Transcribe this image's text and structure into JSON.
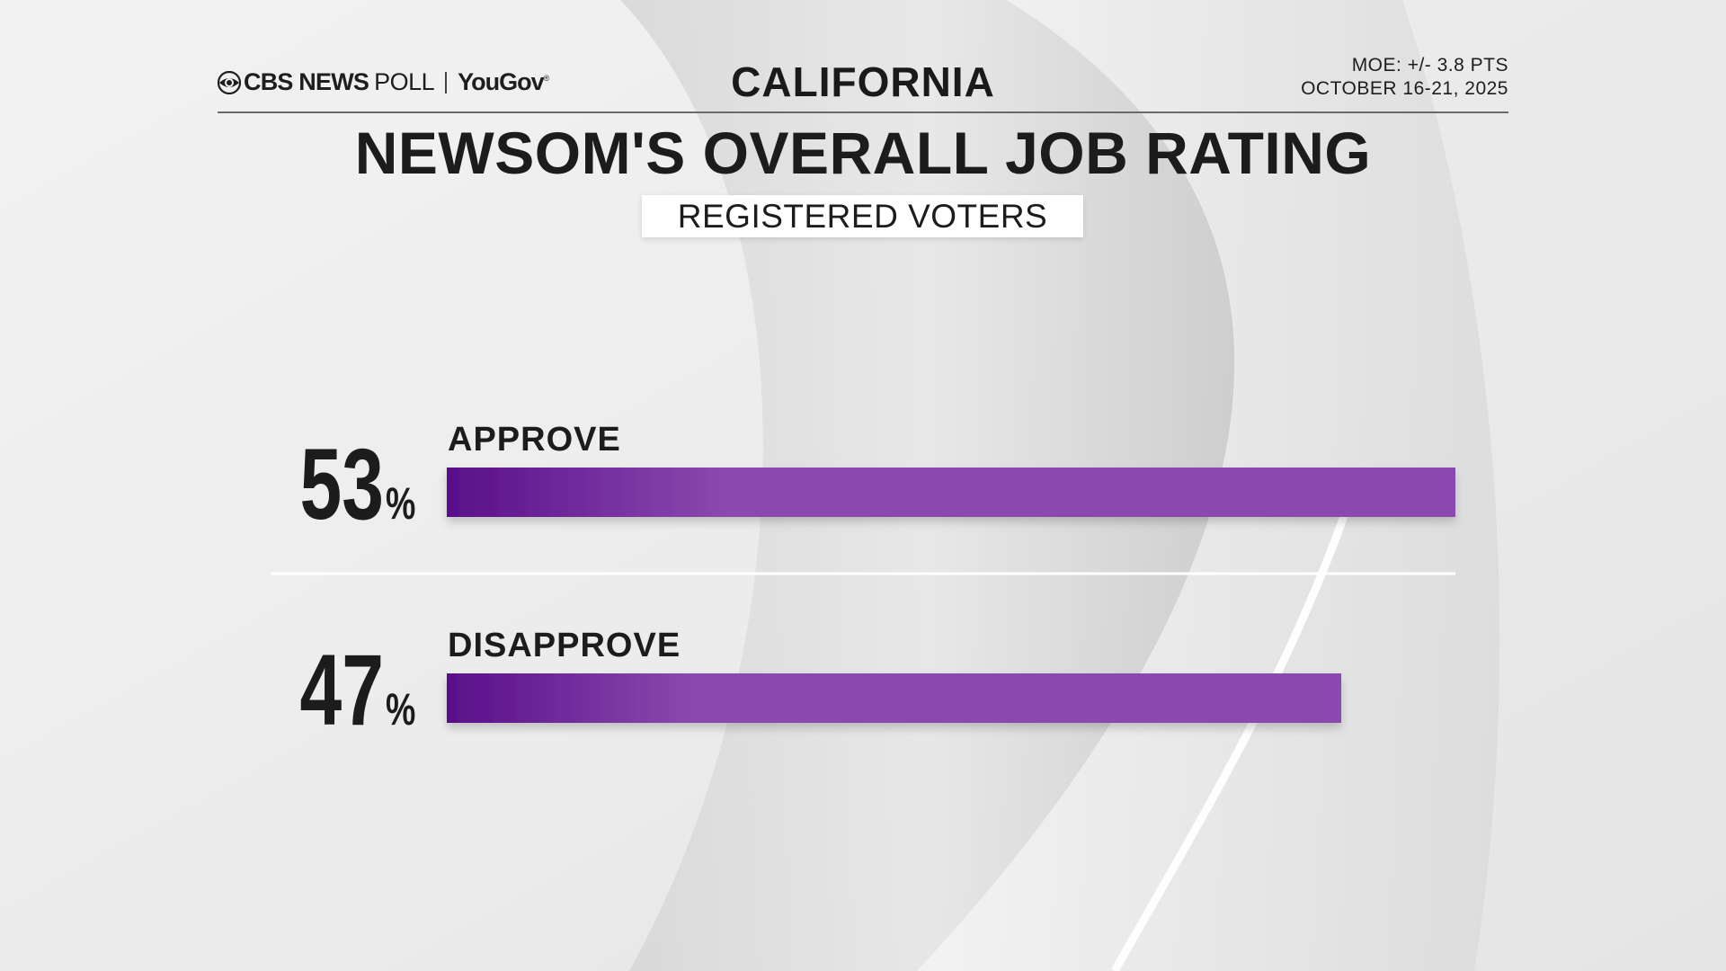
{
  "header": {
    "brand_cbs": "CBS NEWS",
    "brand_poll": "POLL",
    "brand_partner": "YouGov",
    "region": "CALIFORNIA",
    "moe": "MOE: +/- 3.8 PTS",
    "dates": "OCTOBER 16-21, 2025"
  },
  "subtitle_badge": "REGISTERED VOTERS",
  "colors": {
    "bar_dark": "#5a0f8a",
    "bar_light": "#8a4aae",
    "text": "#1c1c1c"
  },
  "chart_data": {
    "type": "bar",
    "title": "NEWSOM'S OVERALL JOB RATING",
    "categories": [
      "APPROVE",
      "DISAPPROVE"
    ],
    "values": [
      53,
      47
    ],
    "value_labels": [
      "53",
      "47"
    ],
    "unit": "%",
    "xlabel": "",
    "ylabel": "",
    "xlim": [
      0,
      53
    ],
    "grid": false,
    "legend": "none"
  }
}
